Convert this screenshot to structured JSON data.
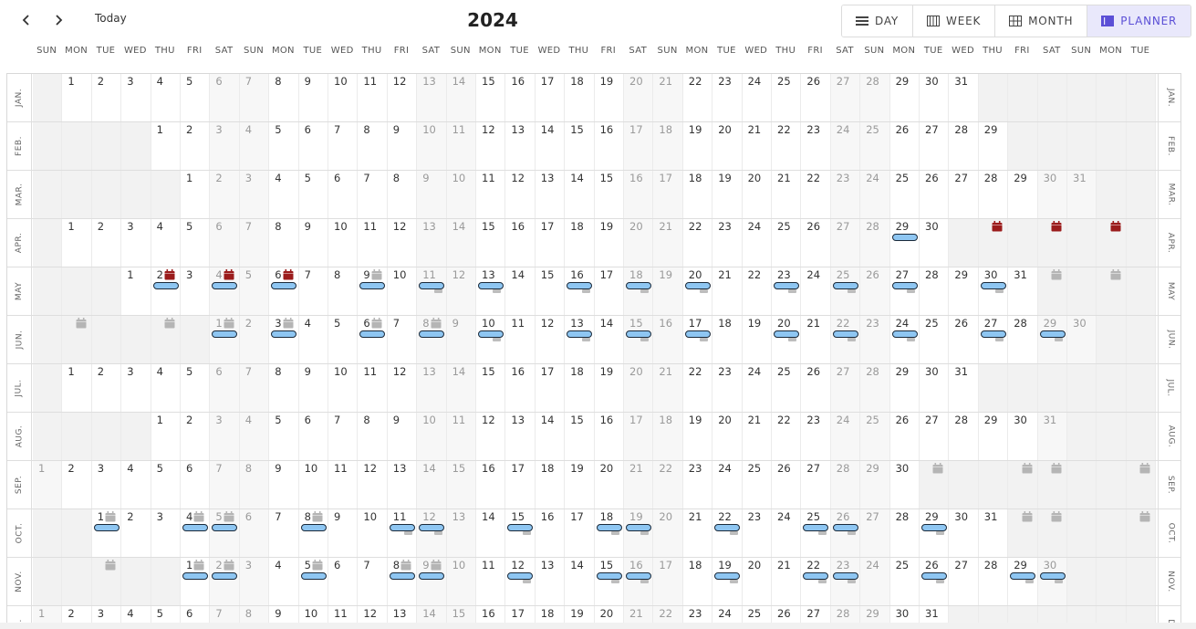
{
  "header": {
    "prev_label": "previous",
    "next_label": "next",
    "today_label": "Today",
    "year": "2024",
    "views": [
      {
        "id": "day",
        "label": "DAY",
        "icon": "list-icon",
        "active": false
      },
      {
        "id": "week",
        "label": "WEEK",
        "icon": "columns-icon",
        "active": false
      },
      {
        "id": "month",
        "label": "MONTH",
        "icon": "grid-icon",
        "active": false
      },
      {
        "id": "planner",
        "label": "PLANNER",
        "icon": "planner-icon",
        "active": true
      }
    ]
  },
  "weekdays": [
    "SUN",
    "MON",
    "TUE",
    "WED",
    "THU",
    "FRI",
    "SAT",
    "SUN",
    "MON",
    "TUE",
    "WED",
    "THU",
    "FRI",
    "SAT",
    "SUN",
    "MON",
    "TUE",
    "WED",
    "THU",
    "FRI",
    "SAT",
    "SUN",
    "MON",
    "TUE",
    "WED",
    "THU",
    "FRI",
    "SAT",
    "SUN",
    "MON",
    "TUE",
    "WED",
    "THU",
    "FRI",
    "SAT",
    "SUN",
    "MON",
    "TUE"
  ],
  "colors": {
    "accent": "#5b4fd6",
    "accent_bg": "#e9e8fb",
    "event_fill": "#8ec6f2",
    "event_border": "#1b2a3a",
    "red_icon": "#9b1c1c",
    "gray_icon": "#b5b5b5"
  },
  "months": [
    {
      "label": "JAN.",
      "start": 1,
      "days": 31
    },
    {
      "label": "FEB.",
      "start": 4,
      "days": 29
    },
    {
      "label": "MAR.",
      "start": 5,
      "days": 31
    },
    {
      "label": "APR.",
      "start": 1,
      "days": 30
    },
    {
      "label": "MAY",
      "start": 3,
      "days": 31
    },
    {
      "label": "JUN.",
      "start": 6,
      "days": 30
    },
    {
      "label": "JUL.",
      "start": 1,
      "days": 31
    },
    {
      "label": "AUG.",
      "start": 4,
      "days": 31
    },
    {
      "label": "SEP.",
      "start": 0,
      "days": 30
    },
    {
      "label": "OCT.",
      "start": 2,
      "days": 31
    },
    {
      "label": "NOV.",
      "start": 5,
      "days": 30
    },
    {
      "label": "DEC.",
      "start": 0,
      "days": 31
    }
  ],
  "events": {
    "APR.": {
      "pills": [
        29
      ],
      "red": [
        32,
        34,
        36
      ],
      "gray": []
    },
    "MAY": {
      "pills": [
        2,
        4,
        6,
        9,
        11,
        13,
        16,
        18,
        20,
        23,
        25,
        27,
        30
      ],
      "red": [
        2,
        4,
        6
      ],
      "gray": [
        9,
        32,
        34
      ],
      "marks": [
        11,
        13,
        16,
        18,
        20,
        23,
        25,
        27,
        30
      ]
    },
    "JUN.": {
      "pills": [
        1,
        3,
        6,
        8,
        10,
        13,
        15,
        17,
        20,
        22,
        24,
        27,
        29
      ],
      "red": [],
      "gray": [
        -4,
        -1,
        1,
        3,
        6,
        8
      ],
      "marks": [
        10,
        13,
        15,
        17,
        20,
        22,
        24,
        27,
        29
      ]
    },
    "SEP.": {
      "pills": [],
      "red": [],
      "gray": [
        31,
        34,
        35,
        38
      ]
    },
    "OCT.": {
      "pills": [
        1,
        4,
        5,
        8,
        11,
        12,
        15,
        18,
        19,
        22,
        25,
        26,
        29
      ],
      "red": [],
      "gray": [
        1,
        4,
        5,
        8,
        32,
        33,
        36
      ],
      "marks": [
        11,
        12,
        15,
        18,
        19,
        22,
        25,
        26,
        29
      ]
    },
    "NOV.": {
      "pills": [
        1,
        2,
        5,
        8,
        9,
        12,
        15,
        16,
        19,
        22,
        23,
        26,
        29,
        30
      ],
      "red": [],
      "gray": [
        -2,
        1,
        2,
        5,
        8,
        9
      ],
      "marks": [
        12,
        15,
        16,
        19,
        22,
        23,
        26,
        29,
        30
      ]
    }
  }
}
